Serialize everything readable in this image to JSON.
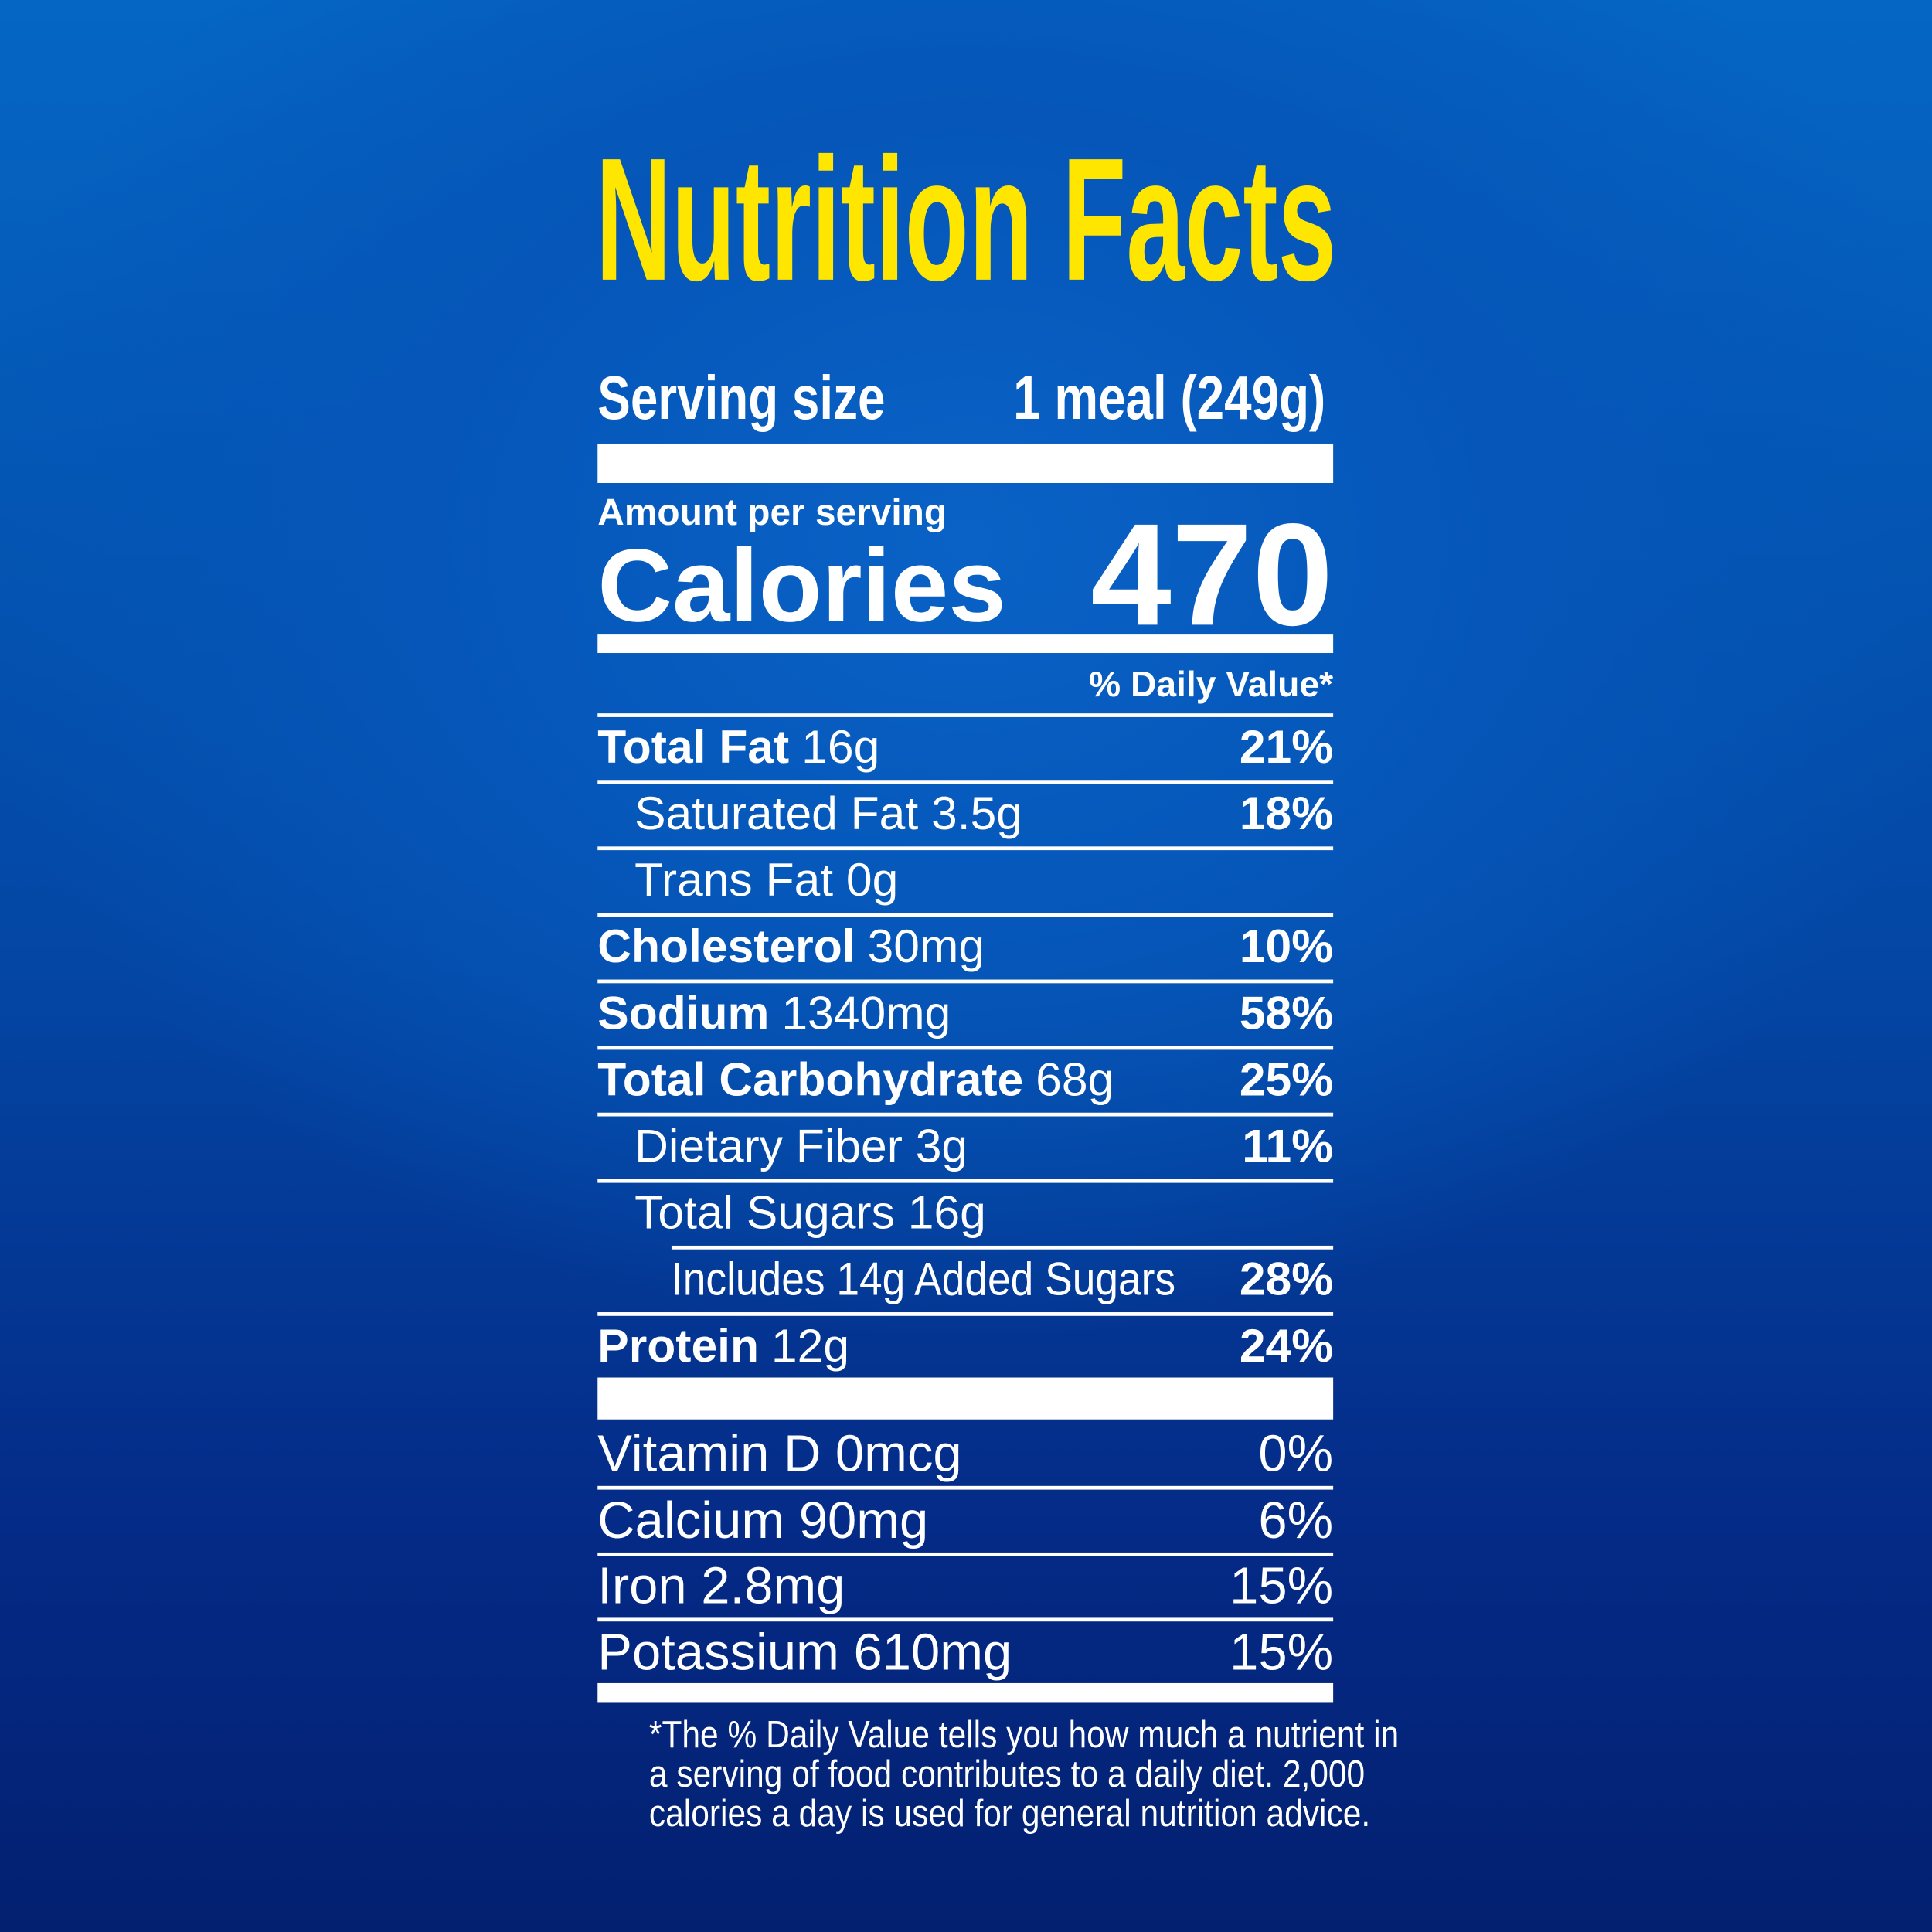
{
  "title": "Nutrition Facts",
  "serving": {
    "label": "Serving size",
    "value": "1 meal (249g)"
  },
  "calories": {
    "header": "Amount per serving",
    "label": "Calories",
    "value": "470"
  },
  "daily_value_header": "% Daily Value*",
  "nutrients": [
    {
      "name": "Total Fat",
      "amount": "16g",
      "dv": "21%"
    },
    {
      "text": "Saturated Fat 3.5g",
      "dv": "18%"
    },
    {
      "text": "Trans Fat 0g"
    },
    {
      "name": "Cholesterol",
      "amount": "30mg",
      "dv": "10%"
    },
    {
      "name": "Sodium",
      "amount": "1340mg",
      "dv": "58%"
    },
    {
      "name": "Total Carbohydrate",
      "amount": "68g",
      "dv": "25%"
    },
    {
      "text": "Dietary Fiber 3g",
      "dv": "11%"
    },
    {
      "text": "Total Sugars 16g"
    },
    {
      "text": "Includes 14g Added Sugars",
      "dv": "28%"
    },
    {
      "name": "Protein",
      "amount": "12g",
      "dv": "24%"
    }
  ],
  "vitamins": [
    {
      "text": "Vitamin D 0mcg",
      "dv": "0%"
    },
    {
      "text": "Calcium 90mg",
      "dv": "6%"
    },
    {
      "text": "Iron 2.8mg",
      "dv": "15%"
    },
    {
      "text": "Potassium 610mg",
      "dv": "15%"
    }
  ],
  "footnote": [
    "*The % Daily Value tells you how much a nutrient in",
    "a serving of food contributes to a daily diet. 2,000",
    "calories a day is used for general nutrition advice."
  ]
}
